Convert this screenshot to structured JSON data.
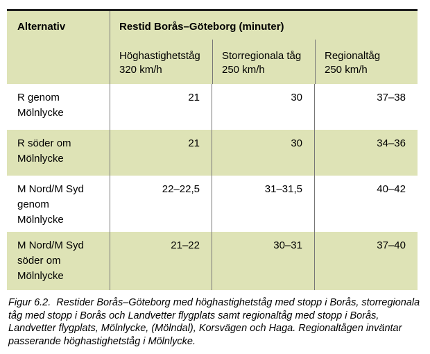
{
  "table": {
    "col_header": "Alternativ",
    "group_header": "Restid Borås–Göteborg (minuter)",
    "sub_headers": [
      {
        "name": "Höghastighetståg",
        "speed": "320 km/h"
      },
      {
        "name": "Storregionala tåg",
        "speed": "250 km/h"
      },
      {
        "name": "Regionaltåg",
        "speed": "250 km/h"
      }
    ],
    "rows": [
      {
        "alternative": "R genom\nMölnlycke",
        "values": [
          "21",
          "30",
          "37–38"
        ]
      },
      {
        "alternative": "R söder om\nMölnlycke",
        "values": [
          "21",
          "30",
          "34–36"
        ]
      },
      {
        "alternative": "M Nord/M Syd\ngenom\nMölnlycke",
        "values": [
          "22–22,5",
          "31–31,5",
          "40–42"
        ]
      },
      {
        "alternative": "M Nord/M Syd\nsöder om\nMölnlycke",
        "values": [
          "21–22",
          "30–31",
          "37–40"
        ]
      }
    ]
  },
  "caption": {
    "lines": [
      "Figur 6.2.  Restider Borås–Göteborg med höghastighetståg med stopp i Borås, storregionala",
      "tåg med stopp i Borås och Landvetter flygplats samt regionaltåg med stopp i Borås,",
      "Landvetter flygplats, Mölnlycke, (Mölndal), Korsvägen och Haga. Regionaltågen inväntar",
      "passerande höghastighetståg i Mölnlycke."
    ]
  },
  "colors": {
    "row_green": "#dee3b6",
    "row_white": "#ffffff",
    "top_border": "#1f1f1f",
    "divider": "#777777",
    "text": "#000000"
  }
}
